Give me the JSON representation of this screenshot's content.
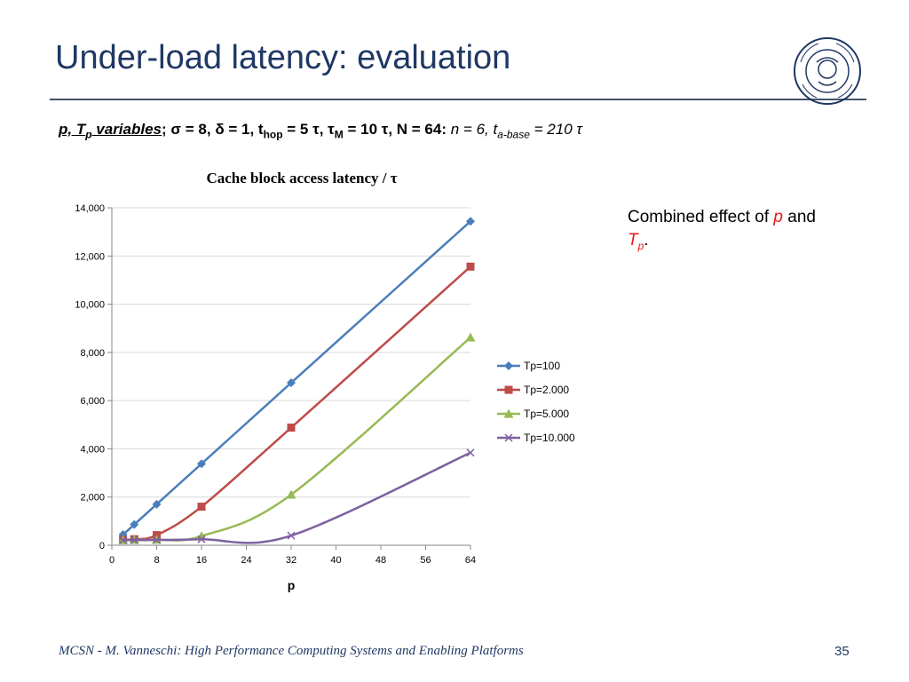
{
  "slide": {
    "title": "Under-load latency: evaluation",
    "params": {
      "p_label": "p, T",
      "p_sub": "p",
      "variables": " variables",
      "semicolon": ";",
      "sigma": " σ = 8, δ = 1, t",
      "hop_sub": "hop",
      "tau1": " = 5 τ, τ",
      "m_sub": "M",
      "tau2": " = 10 τ, N = 64",
      "colon": ":",
      "n": " n = 6, t",
      "abase_sub": "a-base",
      "tau3": " = 210 τ"
    },
    "side_note": {
      "prefix": "Combined effect of ",
      "p": "p",
      "and": " and",
      "tp": "T",
      "tp_sub": "p",
      "period": "."
    },
    "footer": "MCSN   -    M. Vanneschi: High Performance Computing Systems and Enabling Platforms",
    "page_number": "35"
  },
  "colors": {
    "title": "#1f3864",
    "red_text": "#e31b1b",
    "gridline": "#d9d9d9"
  },
  "chart_data": {
    "type": "line",
    "title": "Cache block access latency / τ",
    "xlabel": "p",
    "ylabel": "",
    "xlim": [
      0,
      64
    ],
    "ylim": [
      0,
      14000
    ],
    "x_ticks": [
      "0",
      "8",
      "16",
      "24",
      "32",
      "40",
      "48",
      "56",
      "64"
    ],
    "y_ticks": [
      "0",
      "2,000",
      "4,000",
      "6,000",
      "8,000",
      "10,000",
      "12,000",
      "14,000"
    ],
    "grid": "horizontal",
    "legend": "right",
    "x": [
      2,
      4,
      8,
      16,
      32,
      64
    ],
    "series": [
      {
        "name": "Tp=100",
        "color": "#4a7ebb",
        "marker": "diamond",
        "values": [
          440,
          860,
          1700,
          3380,
          6740,
          13440
        ]
      },
      {
        "name": "Tp=2.000",
        "color": "#be4b48",
        "marker": "square",
        "values": [
          230,
          250,
          420,
          1600,
          4880,
          11560
        ]
      },
      {
        "name": "Tp=5.000",
        "color": "#98b954",
        "marker": "triangle",
        "values": [
          210,
          220,
          230,
          380,
          2100,
          8620
        ]
      },
      {
        "name": "Tp=10.000",
        "color": "#7d60a0",
        "marker": "x",
        "values": [
          210,
          215,
          220,
          250,
          400,
          3840
        ]
      }
    ]
  }
}
